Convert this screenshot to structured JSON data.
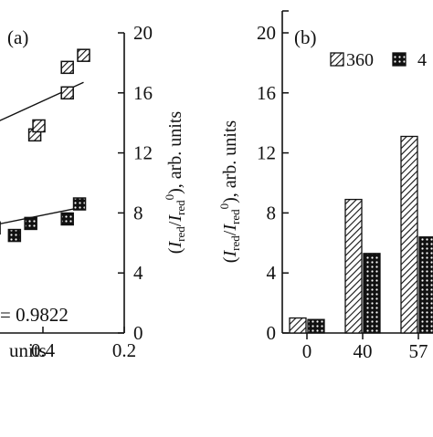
{
  "chart_data": [
    {
      "type": "scatter",
      "panel_label": "(a)",
      "x_tick_labels": [
        "0.4",
        "0.2"
      ],
      "xlabel": "units",
      "y_tick_labels": [
        "0",
        "4",
        "8",
        "12",
        "16",
        "20"
      ],
      "ylabel_parts": {
        "open": "(",
        "I1": "I",
        "sub1": "red",
        "slash": "/",
        "I2": "I",
        "sub2": "red",
        "sup2": "0",
        "close": "), arb. units"
      },
      "annotation": "= 0.9822",
      "ylim": [
        0,
        20
      ],
      "grid": false,
      "series": [
        {
          "marker": "hatched-square",
          "points": [
            {
              "x": 0.42,
              "y": 13.2
            },
            {
              "x": 0.41,
              "y": 13.8
            },
            {
              "x": 0.34,
              "y": 16.0
            },
            {
              "x": 0.34,
              "y": 17.7
            },
            {
              "x": 0.3,
              "y": 18.5
            }
          ],
          "fit_line": [
            {
              "x": 0.72,
              "y": 11.5
            },
            {
              "x": 0.3,
              "y": 16.7
            }
          ]
        },
        {
          "marker": "dotted-square",
          "points": [
            {
              "x": 0.52,
              "y": 7.0
            },
            {
              "x": 0.47,
              "y": 6.5
            },
            {
              "x": 0.43,
              "y": 7.3
            },
            {
              "x": 0.34,
              "y": 7.6
            },
            {
              "x": 0.31,
              "y": 8.6
            }
          ],
          "fit_line": [
            {
              "x": 0.72,
              "y": 6.1
            },
            {
              "x": 0.3,
              "y": 8.4
            }
          ]
        }
      ]
    },
    {
      "type": "bar",
      "panel_label": "(b)",
      "categories": [
        "0",
        "40",
        "57"
      ],
      "y_tick_labels": [
        "0",
        "4",
        "8",
        "12",
        "16",
        "20"
      ],
      "ylabel_parts": {
        "open": "(",
        "I1": "I",
        "sub1": "red",
        "slash": "/",
        "I2": "I",
        "sub2": "red",
        "sup2": "0",
        "close": "), arb. units"
      },
      "ylim": [
        0,
        20
      ],
      "grid": false,
      "legend_position": "top-right",
      "series": [
        {
          "name": "360",
          "pattern": "hatched",
          "values": [
            1.0,
            8.9,
            13.1
          ]
        },
        {
          "name": "4",
          "pattern": "dotted",
          "values": [
            0.9,
            5.3,
            6.4
          ]
        }
      ]
    }
  ]
}
